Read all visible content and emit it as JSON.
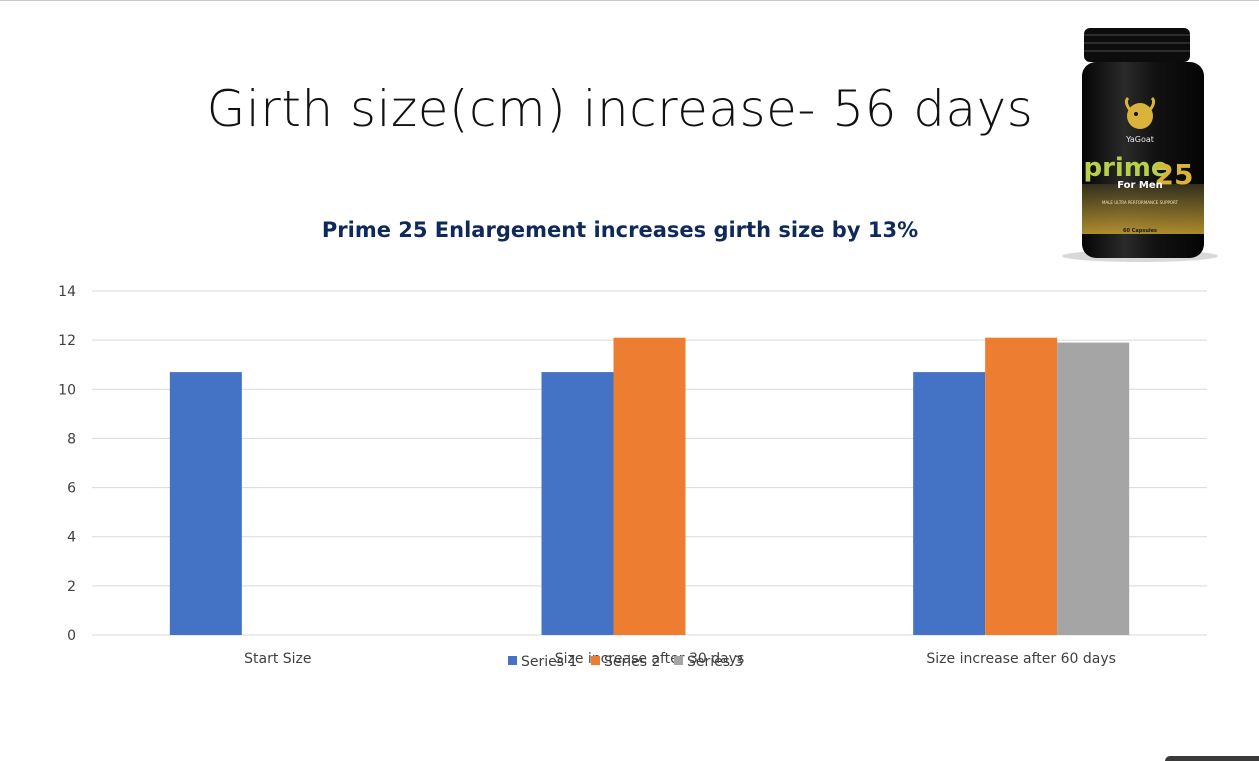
{
  "slide": {
    "title": "Girth size(cm) increase- 56 days"
  },
  "product": {
    "brand": "YaGoat",
    "name": "prime",
    "number": "25",
    "subtitle": "For Men",
    "tagline": "MALE ULTRA PERFORMANCE SUPPORT",
    "count": "60 Capsules",
    "colors": {
      "cap": "#111111",
      "body": "#161616",
      "gold": "#d9b33a",
      "green": "#b7d04a"
    }
  },
  "chart_data": {
    "type": "bar",
    "title": "Prime 25  Enlargement increases girth size by 13%",
    "categories": [
      "Start Size",
      "Size increase after 30 days",
      "Size increase after 60 days"
    ],
    "series": [
      {
        "name": "Series 1",
        "color": "#4472c4",
        "values": [
          10.7,
          10.7,
          10.7
        ]
      },
      {
        "name": "Series 2",
        "color": "#ed7d31",
        "values": [
          null,
          12.1,
          12.1
        ]
      },
      {
        "name": "Series 3",
        "color": "#a5a5a5",
        "values": [
          null,
          null,
          11.9
        ]
      }
    ],
    "ylim": [
      0,
      14
    ],
    "yticks": [
      0,
      2,
      4,
      6,
      8,
      10,
      12,
      14
    ],
    "xlabel": "",
    "ylabel": "",
    "grid": true,
    "legend": "bottom"
  }
}
